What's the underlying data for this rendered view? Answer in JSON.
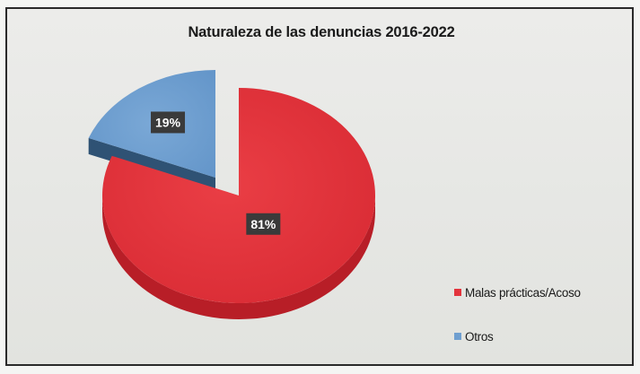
{
  "chart_data": {
    "type": "pie",
    "title": "Naturaleza de las denuncias 2016-2022",
    "slices": [
      {
        "label": "Malas prácticas/Acoso",
        "value": 81,
        "data_label": "81%",
        "color": "#e3343d"
      },
      {
        "label": "Otros",
        "value": 19,
        "data_label": "19%",
        "color": "#6f9fd0"
      }
    ],
    "legend_position": "bottom-right",
    "style": "3d-exploded"
  }
}
